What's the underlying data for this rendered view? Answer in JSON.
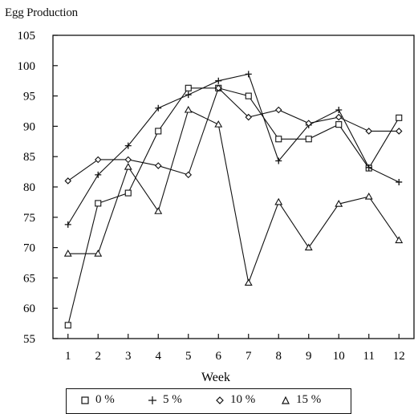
{
  "chart_data": {
    "type": "line",
    "title": "",
    "ylabel": "Egg Production",
    "xlabel": "Week",
    "x": [
      1,
      2,
      3,
      4,
      5,
      6,
      7,
      8,
      9,
      10,
      11,
      12
    ],
    "xlim": [
      0.5,
      12.5
    ],
    "ylim": [
      55,
      105
    ],
    "yticks": [
      55,
      60,
      65,
      70,
      75,
      80,
      85,
      90,
      95,
      100,
      105
    ],
    "grid": false,
    "legend_position": "bottom",
    "series": [
      {
        "name": "0 %",
        "marker": "square",
        "values": [
          57.2,
          77.3,
          79.0,
          89.2,
          96.3,
          96.3,
          95.0,
          87.9,
          87.9,
          90.3,
          83.1,
          91.4
        ]
      },
      {
        "name": "5 %",
        "marker": "plus",
        "values": [
          73.8,
          82.0,
          86.8,
          93.0,
          95.2,
          97.5,
          98.6,
          84.3,
          90.2,
          92.7,
          83.2,
          80.8
        ]
      },
      {
        "name": "10 %",
        "marker": "diamond",
        "values": [
          81.0,
          84.5,
          84.5,
          83.5,
          82.0,
          96.3,
          91.5,
          92.7,
          90.5,
          91.5,
          89.2,
          89.2
        ]
      },
      {
        "name": "15 %",
        "marker": "triangle",
        "values": [
          69.0,
          69.0,
          83.3,
          76.0,
          92.7,
          90.3,
          64.2,
          77.5,
          70.0,
          77.2,
          78.4,
          71.2
        ]
      }
    ]
  }
}
